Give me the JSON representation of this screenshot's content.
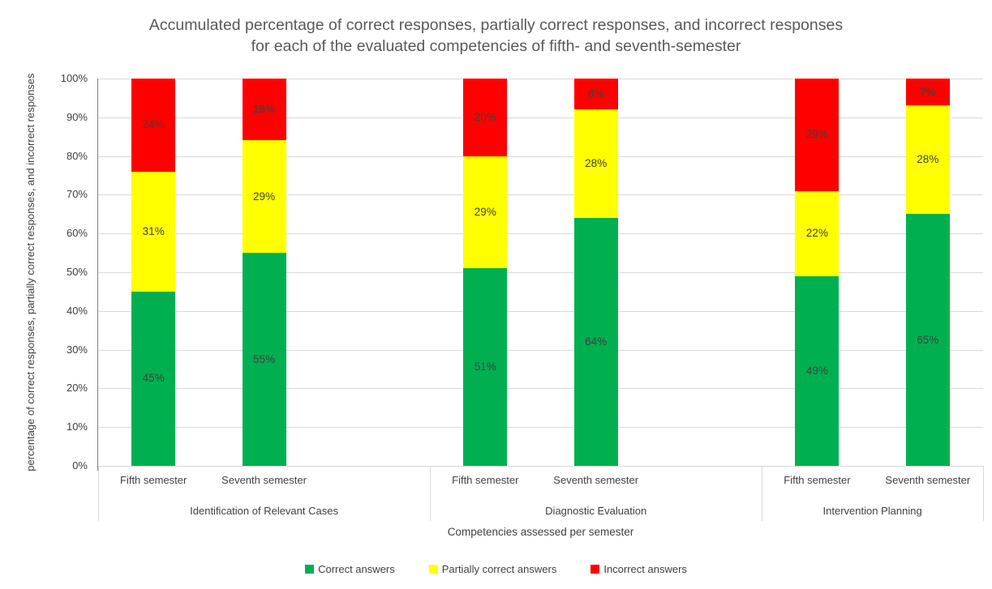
{
  "chart_data": {
    "type": "bar",
    "stacked": true,
    "units": "percent",
    "title": "Accumulated percentage of correct responses, partially correct responses, and incorrect responses for each of the evaluated competencies of fifth- and seventh-semester",
    "xlabel": "Competencies assessed per semester",
    "ylabel": "percentage of correct responses, partially correct responses, and incorrect responses",
    "ylim": [
      0,
      100
    ],
    "ytick_step": 10,
    "ytick_labels": [
      "0%",
      "10%",
      "20%",
      "30%",
      "40%",
      "50%",
      "60%",
      "70%",
      "80%",
      "90%",
      "100%"
    ],
    "grid": "horizontal",
    "legend_position": "bottom",
    "data_label_format": "{value}%",
    "groups": [
      {
        "label": "Identification of Relevant Cases",
        "categories": [
          "Fifth semester",
          "Seventh semester"
        ]
      },
      {
        "label": "Diagnostic Evaluation",
        "categories": [
          "Fifth semester",
          "Seventh semester"
        ]
      },
      {
        "label": "Intervention Planning",
        "categories": [
          "Fifth semester",
          "Seventh semester"
        ]
      }
    ],
    "series": [
      {
        "name": "Correct answers",
        "color": "#00B050",
        "values": [
          45,
          55,
          51,
          64,
          49,
          65
        ]
      },
      {
        "name": "Partially correct answers",
        "color": "#FFFF00",
        "values": [
          31,
          29,
          29,
          28,
          22,
          28
        ]
      },
      {
        "name": "Incorrect answers",
        "color": "#FF0000",
        "values": [
          24,
          16,
          20,
          8,
          29,
          7
        ]
      }
    ],
    "colors": {
      "gridline": "#D9D9D9",
      "axis_line": "#7F7F7F",
      "title_text": "#595959",
      "label_text": "#404040"
    }
  }
}
